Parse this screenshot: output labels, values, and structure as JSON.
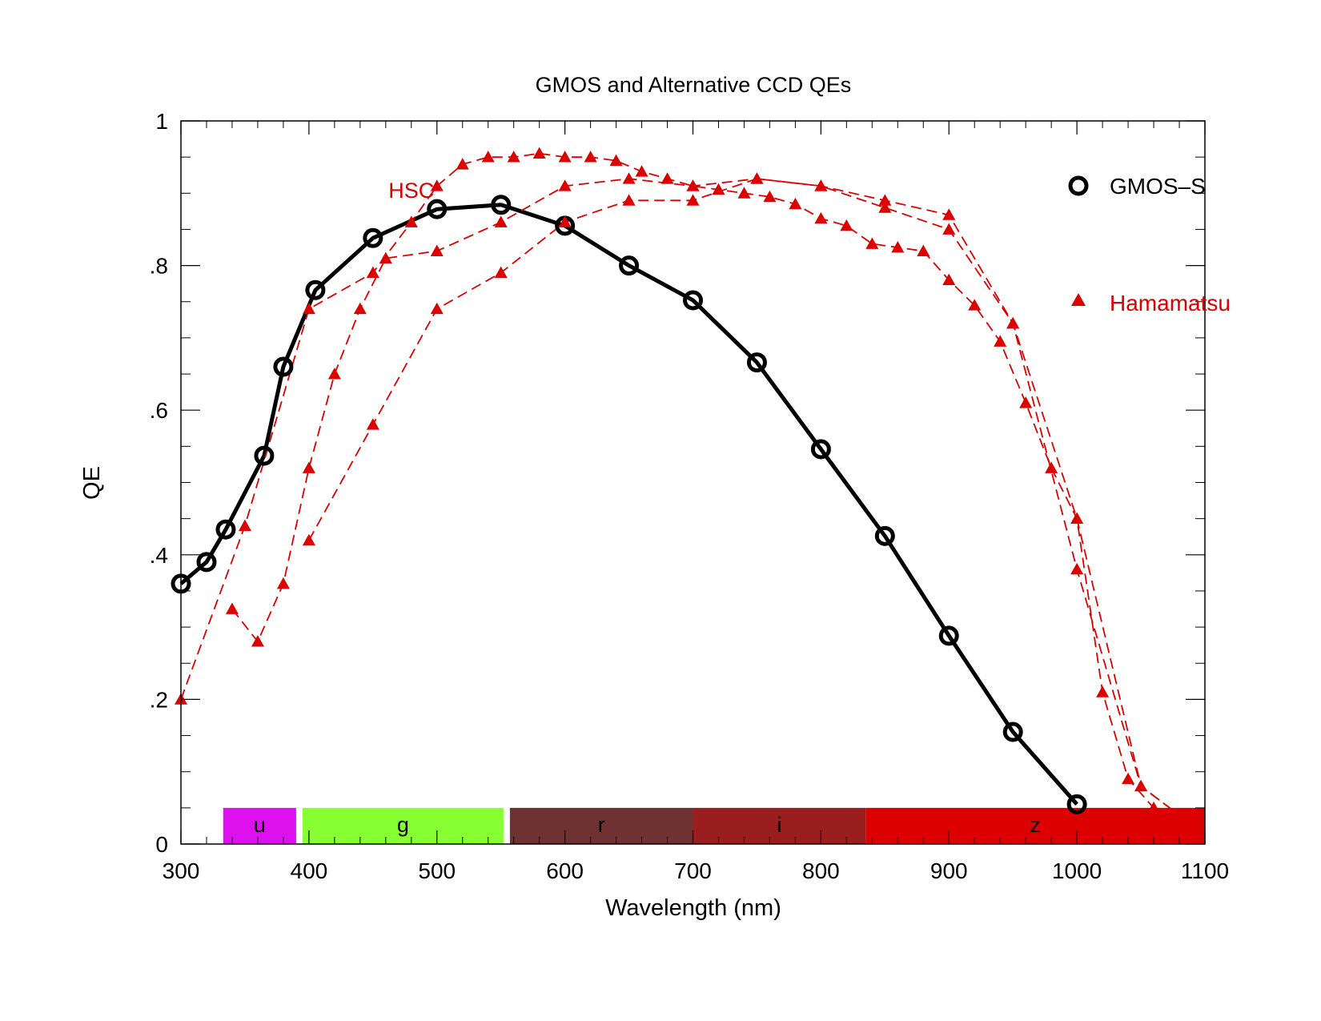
{
  "chart_data": {
    "type": "line",
    "title": "GMOS and Alternative CCD QEs",
    "xlabel": "Wavelength (nm)",
    "ylabel": "QE",
    "xlim": [
      300,
      1100
    ],
    "ylim": [
      0,
      1
    ],
    "x_ticks": [
      300,
      400,
      500,
      600,
      700,
      800,
      900,
      1000,
      1100
    ],
    "x_tick_labels": [
      "300",
      "400",
      "500",
      "600",
      "700",
      "800",
      "900",
      "1000",
      "1100"
    ],
    "y_ticks": [
      0,
      0.2,
      0.4,
      0.6,
      0.8,
      1
    ],
    "y_tick_labels": [
      "0",
      ".2",
      ".4",
      ".6",
      ".8",
      "1"
    ],
    "grid": false,
    "legend": {
      "placement": "top-right",
      "entries": [
        {
          "label": "GMOS–S",
          "marker": "circle",
          "color": "#000000"
        },
        {
          "label": "Hamamatsu",
          "marker": "triangle",
          "color": "#dd0000"
        }
      ]
    },
    "annotations": [
      {
        "text": "HSC",
        "x": 480,
        "y": 0.905,
        "color": "#dd0000"
      }
    ],
    "filter_bands": [
      {
        "label": "u",
        "x0": 333,
        "x1": 390,
        "color": "#dd11ee"
      },
      {
        "label": "g",
        "x0": 395,
        "x1": 552,
        "color": "#88ff33"
      },
      {
        "label": "r",
        "x0": 557,
        "x1": 700,
        "color": "#6e3232"
      },
      {
        "label": "i",
        "x0": 700,
        "x1": 835,
        "color": "#9a1e1e"
      },
      {
        "label": "z",
        "x0": 835,
        "x1": 1100,
        "color": "#dd0000"
      }
    ],
    "band_height": 0.05,
    "series": [
      {
        "name": "GMOS–S",
        "style": "solid",
        "marker": "circle",
        "color": "#000000",
        "x": [
          300,
          320,
          335,
          365,
          380,
          405,
          450,
          500,
          550,
          600,
          650,
          700,
          750,
          800,
          850,
          900,
          950,
          1000
        ],
        "y": [
          0.36,
          0.39,
          0.435,
          0.537,
          0.66,
          0.766,
          0.838,
          0.878,
          0.884,
          0.855,
          0.8,
          0.752,
          0.666,
          0.546,
          0.426,
          0.288,
          0.155,
          0.055
        ]
      },
      {
        "style": "dashed",
        "marker": "triangle",
        "color": "#dd0000",
        "x": [
          300,
          350,
          400,
          450,
          480,
          500,
          520,
          540,
          560,
          580,
          600,
          620,
          640,
          660,
          680,
          700,
          720,
          740,
          760,
          780,
          800,
          820,
          840,
          860,
          880,
          900,
          920,
          940,
          960,
          980,
          1000,
          1020,
          1040,
          1060,
          1080
        ],
        "y": [
          0.2,
          0.44,
          0.74,
          0.79,
          0.86,
          0.91,
          0.94,
          0.95,
          0.95,
          0.955,
          0.95,
          0.95,
          0.945,
          0.93,
          0.92,
          0.91,
          0.905,
          0.9,
          0.895,
          0.885,
          0.865,
          0.855,
          0.83,
          0.825,
          0.82,
          0.78,
          0.745,
          0.695,
          0.61,
          0.52,
          0.45,
          0.21,
          0.09,
          0.05,
          0.04
        ]
      },
      {
        "style": "dashed",
        "marker": "triangle",
        "color": "#dd0000",
        "x": [
          340,
          360,
          380,
          400,
          420,
          440,
          460,
          500,
          550,
          600,
          650,
          700,
          750,
          800,
          850,
          900,
          950,
          1000,
          1050,
          1080
        ],
        "y": [
          0.325,
          0.28,
          0.36,
          0.52,
          0.65,
          0.74,
          0.81,
          0.82,
          0.86,
          0.91,
          0.92,
          0.91,
          0.92,
          0.91,
          0.89,
          0.87,
          0.72,
          0.38,
          0.08,
          0.04
        ]
      },
      {
        "style": "dashed",
        "marker": "triangle",
        "color": "#dd0000",
        "x": [
          400,
          450,
          500,
          550,
          600,
          650,
          700,
          750,
          800,
          850,
          900,
          950,
          1000,
          1050,
          1080
        ],
        "y": [
          0.42,
          0.58,
          0.74,
          0.79,
          0.86,
          0.89,
          0.89,
          0.92,
          0.91,
          0.88,
          0.85,
          0.72,
          0.45,
          0.08,
          0.04
        ]
      }
    ]
  }
}
